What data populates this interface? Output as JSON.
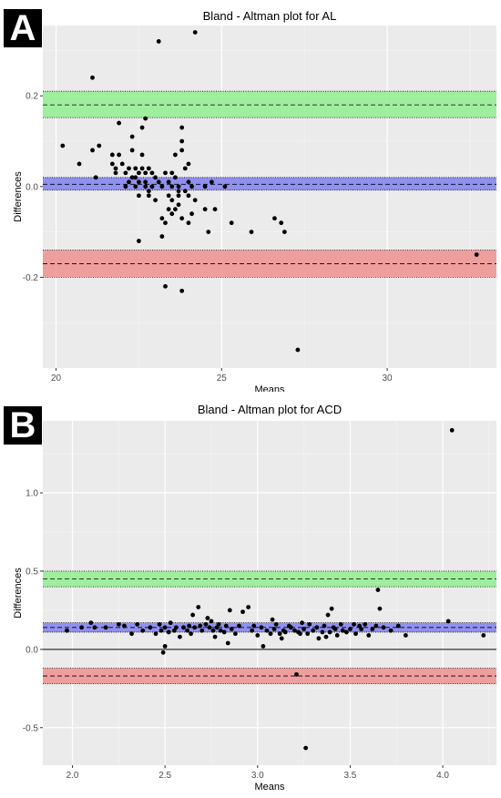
{
  "chart_data": [
    {
      "type": "scatter",
      "panel_label": "A",
      "title": "Bland - Altman plot for AL",
      "xlabel": "Means",
      "ylabel": "Differences",
      "xlim": [
        19.6,
        33.3
      ],
      "ylim": [
        -0.4,
        0.355
      ],
      "xticks": [
        20,
        25,
        30
      ],
      "yticks": [
        -0.2,
        0.0,
        0.2
      ],
      "ytick_labels": [
        "-0.2",
        "0.0",
        "0.2"
      ],
      "grid": true,
      "bands": [
        {
          "role": "upper-loa",
          "color": "#90ee90",
          "low": 0.152,
          "mid": 0.18,
          "high": 0.21
        },
        {
          "role": "mean-bias",
          "color": "#8080f0",
          "low": -0.008,
          "mid": 0.005,
          "high": 0.02
        },
        {
          "role": "lower-loa",
          "color": "#f09090",
          "low": -0.2,
          "mid": -0.17,
          "high": -0.14
        }
      ],
      "points": [
        [
          20.2,
          0.09
        ],
        [
          20.7,
          0.05
        ],
        [
          21.1,
          0.08
        ],
        [
          21.1,
          0.24
        ],
        [
          21.2,
          0.02
        ],
        [
          21.3,
          0.09
        ],
        [
          21.7,
          0.05
        ],
        [
          21.7,
          0.07
        ],
        [
          21.8,
          0.04
        ],
        [
          21.8,
          0.03
        ],
        [
          21.9,
          0.07
        ],
        [
          21.9,
          0.14
        ],
        [
          22.0,
          0.05
        ],
        [
          22.1,
          0.03
        ],
        [
          22.1,
          0.0
        ],
        [
          22.2,
          0.04
        ],
        [
          22.2,
          0.01
        ],
        [
          22.3,
          0.02
        ],
        [
          22.3,
          0.11
        ],
        [
          22.3,
          0.08
        ],
        [
          22.4,
          0.04
        ],
        [
          22.4,
          0.02
        ],
        [
          22.4,
          0.0
        ],
        [
          22.5,
          0.03
        ],
        [
          22.5,
          -0.02
        ],
        [
          22.5,
          0.01
        ],
        [
          22.5,
          -0.12
        ],
        [
          22.6,
          0.04
        ],
        [
          22.6,
          0.13
        ],
        [
          22.6,
          0.07
        ],
        [
          22.7,
          0.15
        ],
        [
          22.7,
          0.03
        ],
        [
          22.7,
          0.01
        ],
        [
          22.7,
          0.0
        ],
        [
          22.8,
          0.04
        ],
        [
          22.8,
          -0.01
        ],
        [
          22.8,
          -0.02
        ],
        [
          22.9,
          0.0
        ],
        [
          22.9,
          0.03
        ],
        [
          23.0,
          0.02
        ],
        [
          23.0,
          -0.03
        ],
        [
          23.1,
          0.01
        ],
        [
          23.1,
          0.32
        ],
        [
          23.2,
          -0.07
        ],
        [
          23.2,
          -0.11
        ],
        [
          23.2,
          0.0
        ],
        [
          23.3,
          0.03
        ],
        [
          23.3,
          -0.08
        ],
        [
          23.3,
          -0.22
        ],
        [
          23.4,
          -0.02
        ],
        [
          23.4,
          0.01
        ],
        [
          23.4,
          -0.05
        ],
        [
          23.5,
          0.0
        ],
        [
          23.5,
          -0.03
        ],
        [
          23.5,
          0.03
        ],
        [
          23.5,
          -0.06
        ],
        [
          23.6,
          0.07
        ],
        [
          23.6,
          0.02
        ],
        [
          23.6,
          -0.05
        ],
        [
          23.7,
          -0.02
        ],
        [
          23.7,
          -0.01
        ],
        [
          23.7,
          0.0
        ],
        [
          23.7,
          -0.04
        ],
        [
          23.8,
          0.13
        ],
        [
          23.8,
          0.1
        ],
        [
          23.8,
          0.08
        ],
        [
          23.8,
          -0.07
        ],
        [
          23.8,
          -0.23
        ],
        [
          23.9,
          0.04
        ],
        [
          23.9,
          -0.01
        ],
        [
          24.0,
          0.05
        ],
        [
          24.0,
          0.01
        ],
        [
          24.0,
          -0.02
        ],
        [
          24.0,
          -0.08
        ],
        [
          24.1,
          0.0
        ],
        [
          24.1,
          -0.06
        ],
        [
          24.2,
          0.34
        ],
        [
          24.2,
          -0.03
        ],
        [
          24.5,
          0.0
        ],
        [
          24.5,
          -0.05
        ],
        [
          24.6,
          -0.1
        ],
        [
          24.7,
          0.01
        ],
        [
          24.8,
          -0.05
        ],
        [
          25.1,
          0.0
        ],
        [
          25.3,
          -0.08
        ],
        [
          25.9,
          -0.1
        ],
        [
          26.6,
          -0.07
        ],
        [
          26.8,
          -0.08
        ],
        [
          26.9,
          -0.1
        ],
        [
          27.3,
          -0.36
        ],
        [
          32.7,
          -0.15
        ]
      ]
    },
    {
      "type": "scatter",
      "panel_label": "B",
      "title": "Bland - Altman plot for ACD",
      "xlabel": "Means",
      "ylabel": "Differences",
      "xlim": [
        1.84,
        4.29
      ],
      "ylim": [
        -0.74,
        1.46
      ],
      "xticks": [
        2.0,
        2.5,
        3.0,
        3.5,
        4.0
      ],
      "xtick_labels": [
        "2.0",
        "2.5",
        "3.0",
        "3.5",
        "4.0"
      ],
      "yticks": [
        -0.5,
        0.0,
        0.5,
        1.0
      ],
      "ytick_labels": [
        "-0.5",
        "0.0",
        "0.5",
        "1.0"
      ],
      "grid": true,
      "zero_line": true,
      "bands": [
        {
          "role": "upper-loa",
          "color": "#90ee90",
          "low": 0.4,
          "mid": 0.45,
          "high": 0.5
        },
        {
          "role": "mean-bias",
          "color": "#8080f0",
          "low": 0.11,
          "mid": 0.14,
          "high": 0.17
        },
        {
          "role": "lower-loa",
          "color": "#f09090",
          "low": -0.22,
          "mid": -0.17,
          "high": -0.12
        }
      ],
      "points": [
        [
          1.97,
          0.12
        ],
        [
          2.05,
          0.14
        ],
        [
          2.1,
          0.17
        ],
        [
          2.12,
          0.14
        ],
        [
          2.18,
          0.14
        ],
        [
          2.25,
          0.16
        ],
        [
          2.28,
          0.15
        ],
        [
          2.32,
          0.1
        ],
        [
          2.35,
          0.16
        ],
        [
          2.38,
          0.12
        ],
        [
          2.42,
          0.14
        ],
        [
          2.45,
          0.1
        ],
        [
          2.47,
          0.16
        ],
        [
          2.48,
          0.12
        ],
        [
          2.49,
          -0.02
        ],
        [
          2.5,
          0.02
        ],
        [
          2.5,
          0.14
        ],
        [
          2.52,
          0.11
        ],
        [
          2.53,
          0.17
        ],
        [
          2.55,
          0.12
        ],
        [
          2.56,
          0.14
        ],
        [
          2.58,
          0.08
        ],
        [
          2.6,
          0.14
        ],
        [
          2.62,
          0.12
        ],
        [
          2.63,
          0.15
        ],
        [
          2.64,
          0.1
        ],
        [
          2.65,
          0.22
        ],
        [
          2.66,
          0.14
        ],
        [
          2.68,
          0.27
        ],
        [
          2.69,
          0.15
        ],
        [
          2.7,
          0.12
        ],
        [
          2.72,
          0.16
        ],
        [
          2.73,
          0.2
        ],
        [
          2.74,
          0.14
        ],
        [
          2.75,
          0.18
        ],
        [
          2.76,
          0.12
        ],
        [
          2.77,
          0.08
        ],
        [
          2.78,
          0.14
        ],
        [
          2.79,
          0.16
        ],
        [
          2.8,
          0.12
        ],
        [
          2.82,
          0.11
        ],
        [
          2.83,
          0.15
        ],
        [
          2.84,
          0.04
        ],
        [
          2.85,
          0.25
        ],
        [
          2.86,
          0.13
        ],
        [
          2.88,
          0.1
        ],
        [
          2.9,
          0.15
        ],
        [
          2.92,
          0.24
        ],
        [
          2.95,
          0.27
        ],
        [
          2.97,
          0.12
        ],
        [
          2.98,
          0.15
        ],
        [
          3.0,
          0.09
        ],
        [
          3.02,
          0.14
        ],
        [
          3.03,
          0.02
        ],
        [
          3.05,
          0.12
        ],
        [
          3.07,
          0.1
        ],
        [
          3.08,
          0.19
        ],
        [
          3.09,
          0.13
        ],
        [
          3.1,
          0.16
        ],
        [
          3.12,
          0.1
        ],
        [
          3.13,
          0.07
        ],
        [
          3.14,
          0.12
        ],
        [
          3.15,
          0.11
        ],
        [
          3.17,
          0.15
        ],
        [
          3.18,
          0.14
        ],
        [
          3.2,
          0.12
        ],
        [
          3.21,
          -0.16
        ],
        [
          3.22,
          0.11
        ],
        [
          3.23,
          0.1
        ],
        [
          3.24,
          0.17
        ],
        [
          3.25,
          0.13
        ],
        [
          3.26,
          -0.63
        ],
        [
          3.27,
          0.1
        ],
        [
          3.28,
          0.16
        ],
        [
          3.3,
          0.12
        ],
        [
          3.32,
          0.14
        ],
        [
          3.33,
          0.07
        ],
        [
          3.35,
          0.11
        ],
        [
          3.36,
          0.15
        ],
        [
          3.37,
          0.08
        ],
        [
          3.38,
          0.22
        ],
        [
          3.39,
          0.11
        ],
        [
          3.4,
          0.26
        ],
        [
          3.41,
          0.14
        ],
        [
          3.42,
          0.13
        ],
        [
          3.43,
          0.09
        ],
        [
          3.45,
          0.16
        ],
        [
          3.46,
          0.12
        ],
        [
          3.48,
          0.11
        ],
        [
          3.5,
          0.13
        ],
        [
          3.52,
          0.16
        ],
        [
          3.53,
          0.1
        ],
        [
          3.55,
          0.15
        ],
        [
          3.56,
          0.13
        ],
        [
          3.58,
          0.16
        ],
        [
          3.6,
          0.09
        ],
        [
          3.62,
          0.13
        ],
        [
          3.64,
          0.15
        ],
        [
          3.65,
          0.38
        ],
        [
          3.66,
          0.26
        ],
        [
          3.68,
          0.14
        ],
        [
          3.72,
          0.12
        ],
        [
          3.76,
          0.15
        ],
        [
          3.8,
          0.09
        ],
        [
          4.03,
          0.18
        ],
        [
          4.05,
          1.4
        ],
        [
          4.22,
          0.09
        ]
      ]
    }
  ]
}
